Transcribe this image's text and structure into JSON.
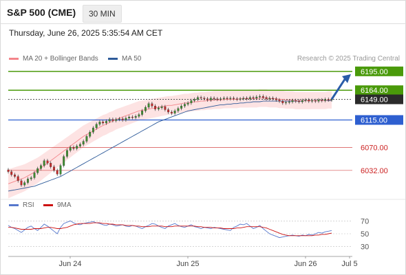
{
  "header": {
    "title": "S&P 500 (CME)",
    "timeframe": "30 MIN"
  },
  "datetime": "Thursday, June 26, 2025 5:35:54 AM CET",
  "legend": {
    "ma20": "MA 20 + Bollinger Bands",
    "ma50": "MA 50",
    "credit": "Research © 2025 Trading Central",
    "rsi": "RSI",
    "ma9": "9MA"
  },
  "colors": {
    "ma20": "#f4848a",
    "ma50": "#2e5b9a",
    "up": "#3c8d2f",
    "down": "#c62828",
    "band": "#fde3e3",
    "rsi": "#5577cc",
    "rsi_ma": "#cc1111",
    "green_level": "#4a9a0a",
    "blue_level": "#2e5fd0",
    "red_level": "#cc2222",
    "last": "#2b2b2b"
  },
  "chart_data": {
    "type": "candlestick",
    "price_axis": {
      "min": 5990,
      "max": 6205
    },
    "x_ticks": [
      "Jun 24",
      "Jun 25",
      "Jun 26",
      "Jul 5"
    ],
    "levels": [
      {
        "label": "6195.00",
        "value": 6195,
        "kind": "resistance"
      },
      {
        "label": "6164.00",
        "value": 6164,
        "kind": "resistance"
      },
      {
        "label": "6149.00",
        "value": 6149,
        "kind": "last"
      },
      {
        "label": "6115.00",
        "value": 6115,
        "kind": "pivot"
      },
      {
        "label": "6070.00",
        "value": 6070,
        "kind": "support"
      },
      {
        "label": "6032.00",
        "value": 6032,
        "kind": "support"
      }
    ],
    "close": [
      6030,
      6025,
      6022,
      6015,
      6008,
      6012,
      6018,
      6020,
      6028,
      6035,
      6040,
      6048,
      6044,
      6038,
      6032,
      6026,
      6040,
      6055,
      6065,
      6070,
      6068,
      6072,
      6075,
      6080,
      6088,
      6095,
      6102,
      6108,
      6112,
      6110,
      6113,
      6116,
      6114,
      6116,
      6117,
      6115,
      6118,
      6120,
      6119,
      6121,
      6124,
      6130,
      6136,
      6142,
      6138,
      6133,
      6135,
      6137,
      6132,
      6128,
      6126,
      6130,
      6134,
      6138,
      6141,
      6143,
      6147,
      6149,
      6152,
      6151,
      6150,
      6148,
      6151,
      6150,
      6149,
      6150,
      6151,
      6150,
      6151,
      6150,
      6149,
      6150,
      6151,
      6150,
      6152,
      6151,
      6153,
      6154,
      6152,
      6150,
      6151,
      6150,
      6148,
      6146,
      6143,
      6144,
      6145,
      6147,
      6146,
      6145,
      6147,
      6148,
      6146,
      6147,
      6146,
      6148,
      6147,
      6149,
      6148,
      6149
    ],
    "ma20": [
      6010,
      6012,
      6014,
      6016,
      6018,
      6020,
      6023,
      6026,
      6029,
      6032,
      6036,
      6040,
      6044,
      6048,
      6052,
      6056,
      6060,
      6064,
      6068,
      6072,
      6076,
      6080,
      6084,
      6088,
      6091,
      6094,
      6097,
      6100,
      6103,
      6106,
      6108,
      6111,
      6113,
      6116,
      6118,
      6120,
      6122,
      6124,
      6126,
      6128,
      6130,
      6131,
      6132,
      6133,
      6134,
      6135,
      6136,
      6137,
      6138,
      6139,
      6139,
      6140,
      6141,
      6142,
      6143,
      6143,
      6144,
      6145,
      6145,
      6146,
      6146,
      6147,
      6147,
      6148,
      6148,
      6148,
      6149,
      6149,
      6149,
      6149,
      6149,
      6150,
      6150,
      6150,
      6150,
      6150,
      6150,
      6151,
      6151,
      6151,
      6150,
      6150,
      6150,
      6149,
      6149,
      6148,
      6148,
      6148,
      6147,
      6147,
      6147,
      6147,
      6147,
      6147,
      6147,
      6147,
      6147,
      6147,
      6148,
      6148
    ],
    "ma50": [
      5998,
      5999,
      6000,
      6001,
      6002,
      6003,
      6004,
      6005,
      6006,
      6008,
      6010,
      6012,
      6014,
      6016,
      6018,
      6020,
      6022,
      6025,
      6028,
      6031,
      6034,
      6037,
      6040,
      6043,
      6046,
      6049,
      6052,
      6055,
      6058,
      6061,
      6064,
      6067,
      6070,
      6073,
      6076,
      6079,
      6082,
      6085,
      6088,
      6091,
      6094,
      6097,
      6100,
      6103,
      6106,
      6109,
      6112,
      6114,
      6116,
      6118,
      6120,
      6122,
      6124,
      6126,
      6128,
      6130,
      6131,
      6132,
      6133,
      6134,
      6135,
      6136,
      6137,
      6138,
      6139,
      6140,
      6140,
      6141,
      6141,
      6142,
      6142,
      6143,
      6143,
      6144,
      6144,
      6145,
      6145,
      6145,
      6146,
      6146,
      6146,
      6146,
      6146,
      6146,
      6146,
      6146,
      6146,
      6146,
      6146,
      6146,
      6146,
      6147,
      6147,
      6147,
      6147,
      6147,
      6147,
      6147,
      6147,
      6147
    ],
    "rsi": {
      "axis_ticks": [
        70,
        50,
        30
      ],
      "min": 20,
      "max": 80,
      "values": [
        63,
        60,
        58,
        55,
        52,
        56,
        60,
        62,
        58,
        55,
        60,
        65,
        62,
        58,
        54,
        50,
        60,
        66,
        68,
        70,
        67,
        65,
        64,
        66,
        67,
        68,
        69,
        67,
        66,
        64,
        63,
        65,
        64,
        62,
        63,
        64,
        62,
        61,
        63,
        62,
        60,
        58,
        61,
        63,
        66,
        65,
        62,
        60,
        58,
        62,
        64,
        66,
        63,
        61,
        60,
        62,
        64,
        61,
        60,
        58,
        60,
        59,
        58,
        60,
        59,
        58,
        57,
        56,
        55,
        60,
        62,
        65,
        64,
        66,
        62,
        58,
        60,
        63,
        58,
        54,
        50,
        48,
        46,
        44,
        45,
        46,
        47,
        48,
        47,
        46,
        48,
        47,
        49,
        48,
        50,
        52,
        51,
        53,
        54,
        55
      ],
      "ma9": [
        60,
        60,
        59,
        58,
        57,
        57,
        57,
        57,
        58,
        58,
        58,
        59,
        60,
        60,
        59,
        58,
        58,
        59,
        60,
        62,
        64,
        65,
        66,
        66,
        66,
        66,
        67,
        67,
        67,
        66,
        66,
        65,
        65,
        64,
        64,
        64,
        63,
        63,
        63,
        62,
        62,
        61,
        61,
        61,
        62,
        62,
        62,
        62,
        61,
        61,
        61,
        62,
        62,
        62,
        62,
        62,
        62,
        62,
        61,
        61,
        60,
        60,
        60,
        59,
        59,
        59,
        58,
        58,
        58,
        58,
        59,
        59,
        60,
        61,
        61,
        61,
        61,
        61,
        60,
        59,
        57,
        55,
        53,
        51,
        49,
        48,
        47,
        47,
        47,
        47,
        47,
        47,
        47,
        47,
        48,
        48,
        49,
        49,
        50,
        51
      ]
    }
  }
}
